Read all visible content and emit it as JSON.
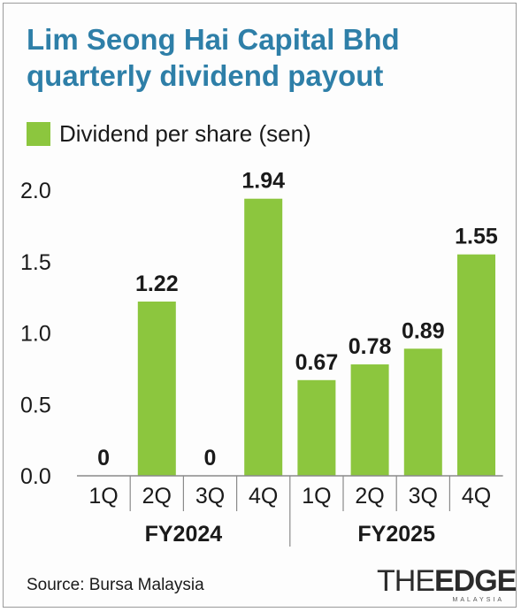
{
  "chart_data": {
    "type": "bar",
    "title": "Lim Seong Hai Capital Bhd quarterly dividend payout",
    "legend": "Dividend per share (sen)",
    "categories": [
      "1Q",
      "2Q",
      "3Q",
      "4Q",
      "1Q",
      "2Q",
      "3Q",
      "4Q"
    ],
    "groups": [
      {
        "label": "FY2024",
        "count": 4
      },
      {
        "label": "FY2025",
        "count": 4
      }
    ],
    "series": [
      {
        "name": "Dividend per share (sen)",
        "values": [
          0,
          1.22,
          0,
          1.94,
          0.67,
          0.78,
          0.89,
          1.55
        ]
      }
    ],
    "value_labels": [
      "0",
      "1.22",
      "0",
      "1.94",
      "0.67",
      "0.78",
      "0.89",
      "1.55"
    ],
    "yticks": [
      "0.0",
      "0.5",
      "1.0",
      "1.5",
      "2.0"
    ],
    "ylim": [
      0,
      2.0
    ],
    "grid": false,
    "bar_color": "#8cc63e",
    "title_color": "#2e7fa8"
  },
  "footer": {
    "source": "Source: Bursa Malaysia",
    "logo_the": "THE",
    "logo_edge": "EDGE",
    "logo_sub": "MALAYSIA"
  }
}
